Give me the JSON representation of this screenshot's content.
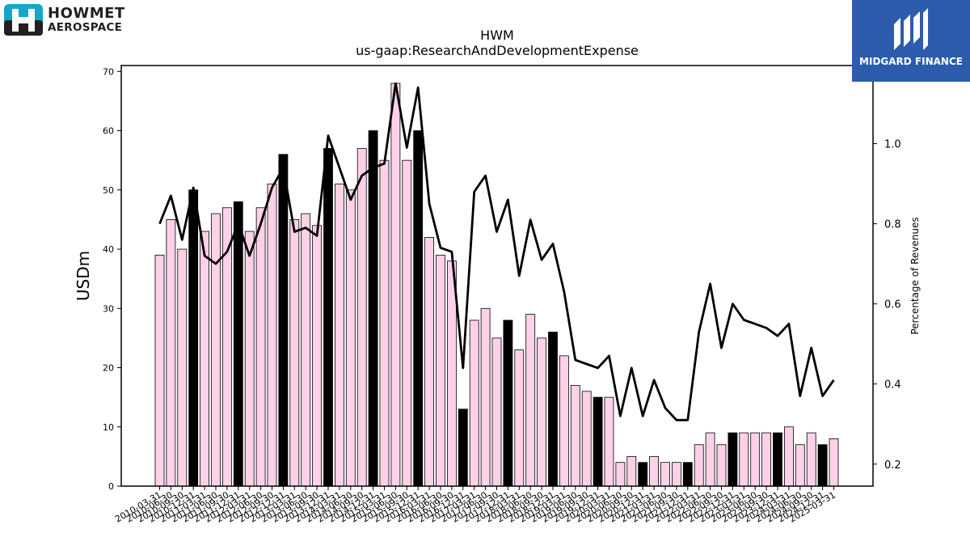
{
  "brand_left": {
    "line1": "HOWMET",
    "line2": "AEROSPACE",
    "accent": "#16a6c9",
    "dark": "#231f20"
  },
  "brand_right": {
    "name": "MIDGARD FINANCE",
    "bg": "#2c5cab"
  },
  "chart_data": {
    "type": "bar",
    "title": "HWM",
    "subtitle": "us-gaap:ResearchAndDevelopmentExpense",
    "ylabel": "USDm",
    "y2label": "Percentage of Revenues",
    "ylim": [
      0,
      71
    ],
    "y2lim": [
      0.145,
      1.195
    ],
    "yticks": [
      0,
      10,
      20,
      30,
      40,
      50,
      60,
      70
    ],
    "y2ticks": [
      0.2,
      0.4,
      0.6,
      0.8,
      1.0
    ],
    "grid": false,
    "bar_colors": {
      "quarter": "#ffd1e8",
      "annual": "#000000",
      "edge": "#000000"
    },
    "line_color": "#000000",
    "categories": [
      "2010-03-31",
      "2010-06-30",
      "2010-09-30",
      "2010-12-31",
      "2011-03-31",
      "2011-06-30",
      "2011-09-30",
      "2011-12-31",
      "2012-03-31",
      "2012-06-30",
      "2012-09-30",
      "2012-12-31",
      "2013-03-31",
      "2013-06-30",
      "2013-09-30",
      "2013-12-31",
      "2014-03-31",
      "2014-06-30",
      "2014-09-30",
      "2014-12-31",
      "2015-03-31",
      "2015-06-30",
      "2015-09-30",
      "2015-12-31",
      "2016-03-31",
      "2016-06-30",
      "2016-09-30",
      "2016-12-31",
      "2017-03-31",
      "2017-06-30",
      "2017-09-30",
      "2017-12-31",
      "2018-03-31",
      "2018-06-30",
      "2018-09-30",
      "2018-12-31",
      "2019-03-31",
      "2019-06-30",
      "2019-09-30",
      "2019-12-31",
      "2020-03-31",
      "2020-06-30",
      "2020-09-30",
      "2020-12-31",
      "2021-03-31",
      "2021-06-30",
      "2021-09-30",
      "2021-12-31",
      "2022-03-31",
      "2022-06-30",
      "2022-09-30",
      "2022-12-31",
      "2023-03-31",
      "2023-06-30",
      "2023-09-30",
      "2023-12-31",
      "2024-03-31",
      "2024-06-30",
      "2024-09-30",
      "2024-12-31",
      "2025-03-31"
    ],
    "series": [
      {
        "type": "bar",
        "values": [
          39,
          45,
          40,
          50,
          43,
          46,
          47,
          48,
          43,
          47,
          51,
          56,
          45,
          46,
          44,
          57,
          51,
          50,
          57,
          60,
          55,
          68,
          55,
          60,
          42,
          39,
          38,
          13,
          28,
          30,
          25,
          28,
          23,
          29,
          25,
          26,
          22,
          17,
          16,
          15,
          15,
          4,
          5,
          4,
          5,
          4,
          4,
          4,
          7,
          9,
          7,
          9,
          9,
          9,
          9,
          9,
          10,
          7,
          9,
          7,
          8
        ],
        "annual_flags": [
          0,
          0,
          0,
          1,
          0,
          0,
          0,
          1,
          0,
          0,
          0,
          1,
          0,
          0,
          0,
          1,
          0,
          0,
          0,
          1,
          0,
          0,
          0,
          1,
          0,
          0,
          0,
          1,
          0,
          0,
          0,
          1,
          0,
          0,
          0,
          1,
          0,
          0,
          0,
          1,
          0,
          0,
          0,
          1,
          0,
          0,
          0,
          1,
          0,
          0,
          0,
          1,
          0,
          0,
          0,
          1,
          0,
          0,
          0,
          1,
          0
        ]
      },
      {
        "type": "line",
        "axis": "right",
        "values": [
          0.8,
          0.87,
          0.76,
          0.89,
          0.72,
          0.7,
          0.73,
          0.8,
          0.72,
          0.8,
          0.89,
          0.94,
          0.78,
          0.79,
          0.77,
          1.02,
          0.94,
          0.86,
          0.92,
          0.94,
          0.95,
          1.15,
          0.99,
          1.14,
          0.85,
          0.74,
          0.73,
          0.44,
          0.88,
          0.92,
          0.78,
          0.86,
          0.67,
          0.81,
          0.71,
          0.75,
          0.63,
          0.46,
          0.45,
          0.44,
          0.47,
          0.32,
          0.44,
          0.32,
          0.41,
          0.34,
          0.31,
          0.31,
          0.53,
          0.65,
          0.49,
          0.6,
          0.56,
          0.55,
          0.54,
          0.52,
          0.55,
          0.37,
          0.49,
          0.37,
          0.41
        ]
      }
    ]
  }
}
